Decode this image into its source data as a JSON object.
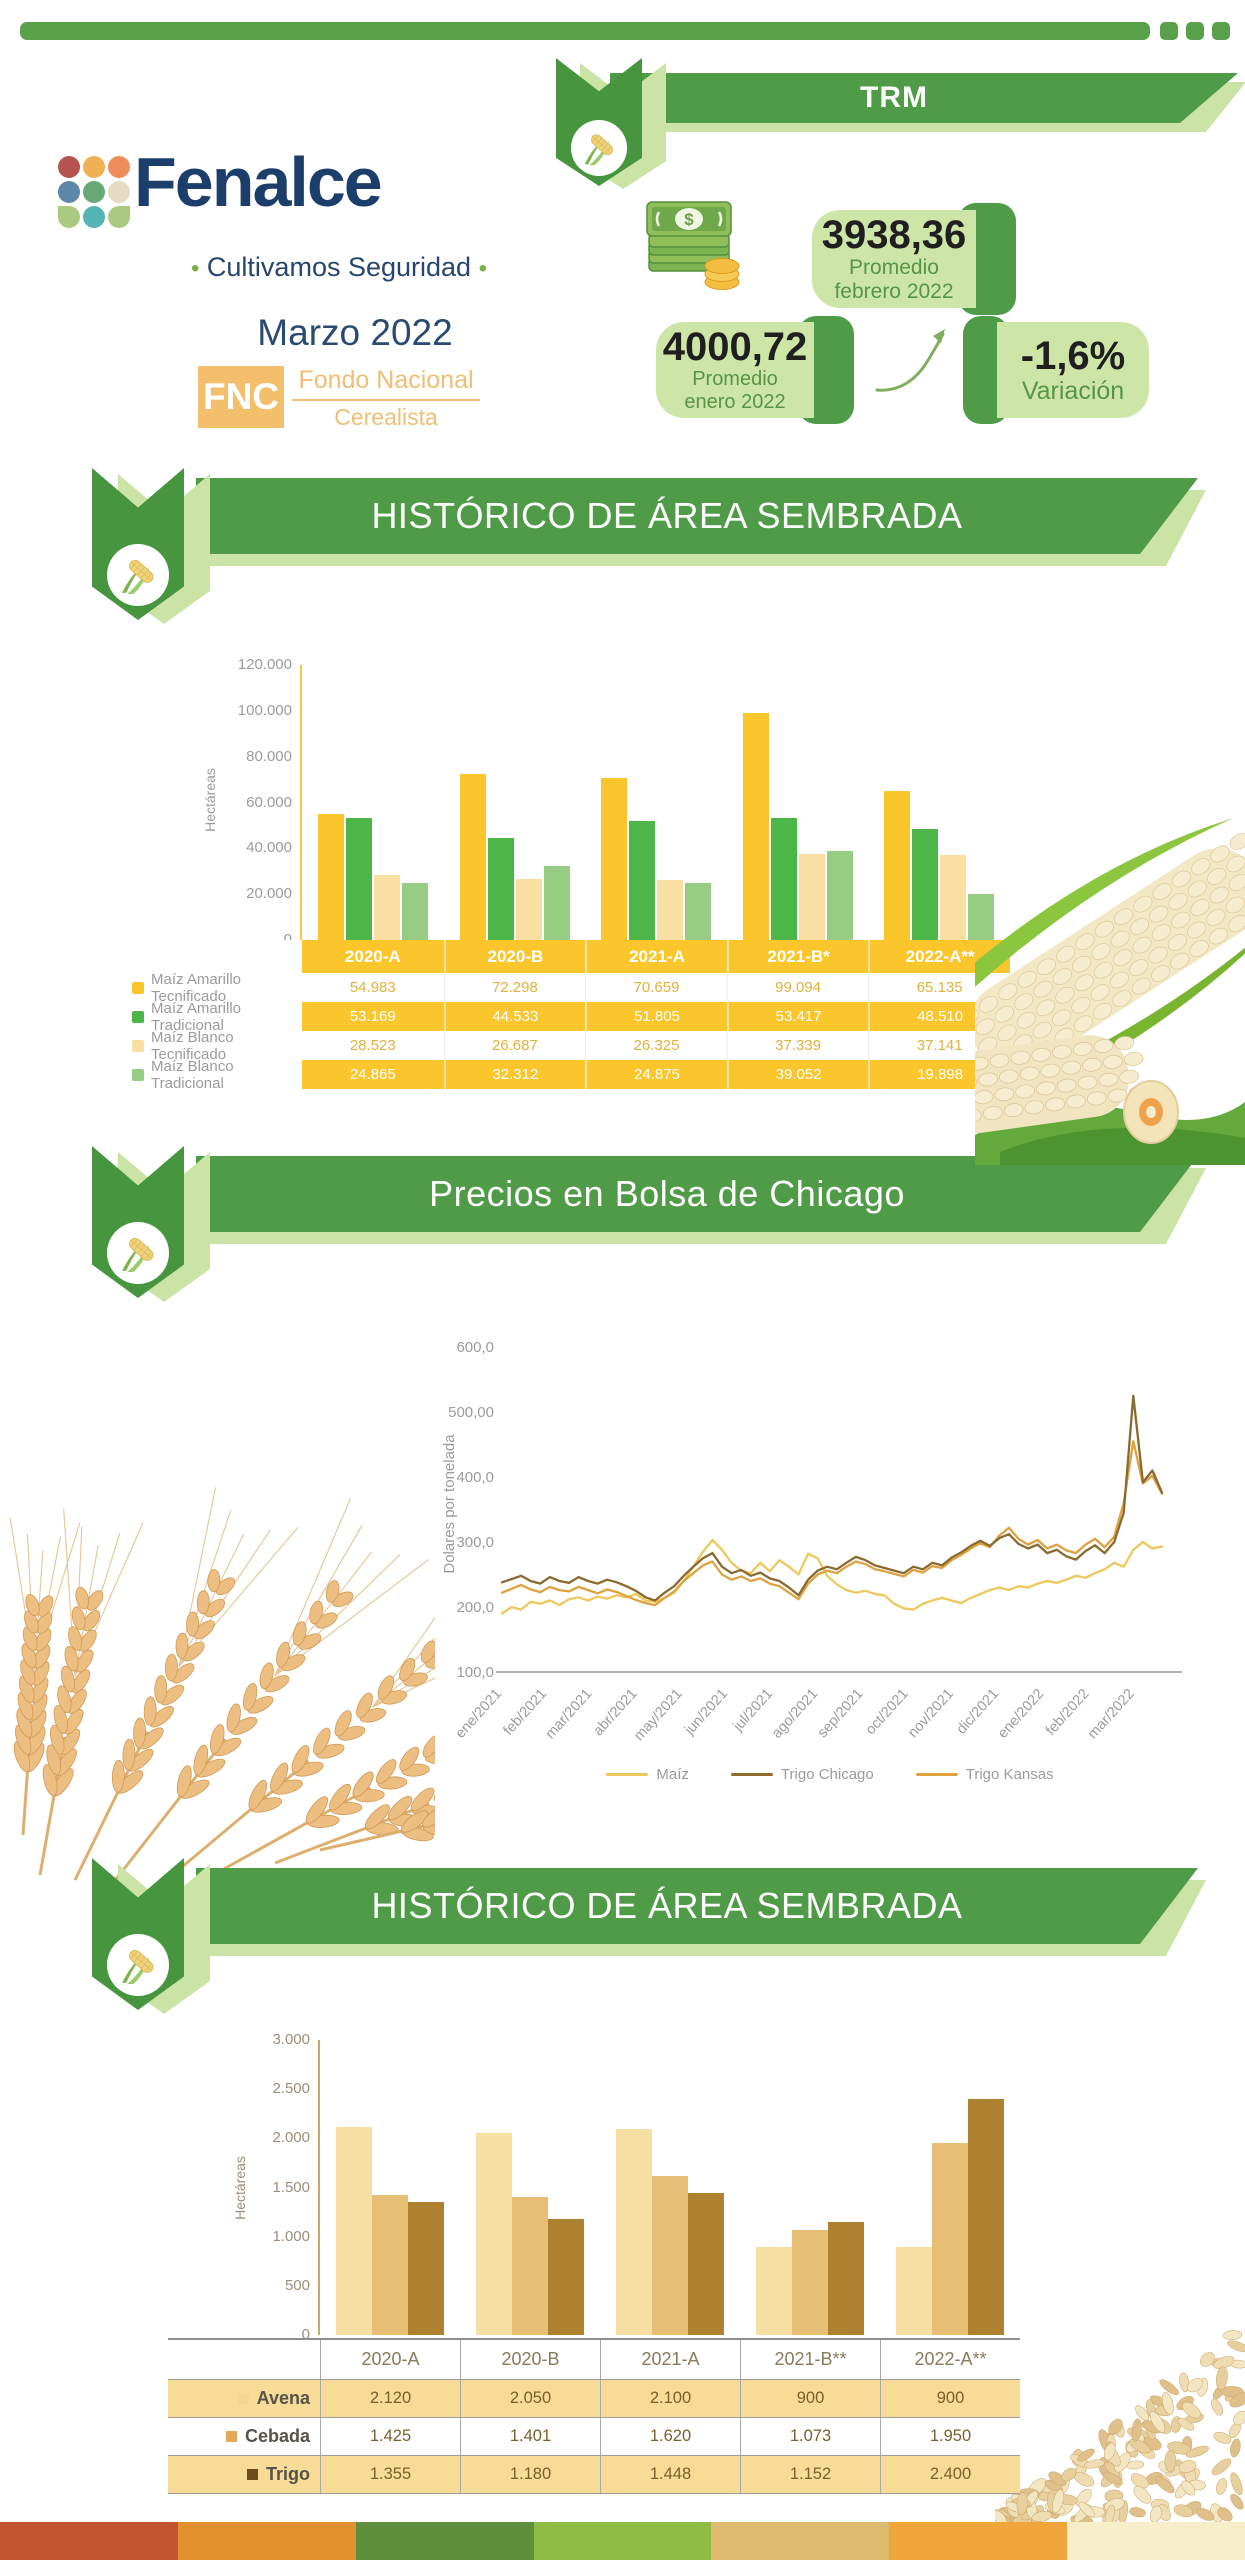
{
  "top_bar": {
    "color": "#59A04B",
    "squares_count": 3
  },
  "header": {
    "logo": {
      "brand": "Fenalce",
      "bullet": "•",
      "tagline": "Cultivamos Seguridad",
      "period": "Marzo 2022",
      "fnc": {
        "acronym": "FNC",
        "line1": "Fondo Nacional",
        "line2": "Cerealista"
      },
      "dots": [
        {
          "color": "#B5534E",
          "shape": "circle"
        },
        {
          "color": "#F0B054",
          "shape": "circle"
        },
        {
          "color": "#EE8C5A",
          "shape": "circle"
        },
        {
          "color": "#5E87A8",
          "shape": "circle"
        },
        {
          "color": "#67A876",
          "shape": "circle"
        },
        {
          "color": "#E5DAC3",
          "shape": "circle"
        },
        {
          "color": "#A9CA80",
          "shape": "leafL"
        },
        {
          "color": "#54B3B3",
          "shape": "circle"
        },
        {
          "color": "#A9CA80",
          "shape": "leafR"
        }
      ]
    },
    "trm": {
      "title": "TRM",
      "feb": {
        "value": "3938,36",
        "line1": "Promedio",
        "line2": "febrero 2022"
      },
      "ene": {
        "value": "4000,72",
        "line1": "Promedio",
        "line2": "enero 2022"
      },
      "variation": {
        "value": "-1,6%",
        "label": "Variación"
      }
    }
  },
  "sections": {
    "area1_title": "HISTÓRICO DE ÁREA SEMBRADA",
    "chicago_title": "Precios en Bolsa de Chicago",
    "area2_title": "HISTÓRICO DE ÁREA SEMBRADA"
  },
  "chart_data": [
    {
      "type": "bar",
      "title": "HISTÓRICO DE ÁREA SEMBRADA",
      "ylabel": "Hectáreas",
      "ylim": [
        0,
        120000
      ],
      "ytick_labels": [
        "120.000",
        "100.000",
        "80.000",
        "60.000",
        "40.000",
        "20.000",
        "0"
      ],
      "grid": false,
      "categories": [
        "2020-A",
        "2020-B",
        "2021-A",
        "2021-B*",
        "2022-A**"
      ],
      "series": [
        {
          "name": "Maíz Amarillo Tecnificado",
          "color": "#FBC62C",
          "values": [
            54983,
            72298,
            70659,
            99094,
            65135
          ]
        },
        {
          "name": "Maíz Amarillo Tradicional",
          "color": "#4DB648",
          "values": [
            53169,
            44533,
            51805,
            53417,
            48510
          ]
        },
        {
          "name": "Maíz Blanco Tecnificado",
          "color": "#FADFA3",
          "values": [
            28523,
            26687,
            26325,
            37339,
            37141
          ]
        },
        {
          "name": "Maíz Blanco Tradicional",
          "color": "#97CC83",
          "values": [
            24865,
            32312,
            24875,
            39052,
            19898
          ]
        }
      ]
    },
    {
      "type": "line",
      "title": "Precios en Bolsa de Chicago",
      "ylabel": "Dolares por tonelada",
      "ylim": [
        100,
        600
      ],
      "ytick_labels": [
        "600,0",
        "500,00",
        "400,0",
        "300,0",
        "200,0",
        "100,0"
      ],
      "grid": false,
      "legend_position": "bottom",
      "x_labels": [
        "ene/2021",
        "feb/2021",
        "mar/2021",
        "abr/2021",
        "may/2021",
        "jun/2021",
        "jul/2021",
        "ago/2021",
        "sep/2021",
        "oct/2021",
        "nov/2021",
        "dic/2021",
        "ene/2022",
        "feb/2022",
        "mar/2022"
      ],
      "series": [
        {
          "name": "Maíz",
          "color": "#EDC85C",
          "values": [
            190,
            200,
            196,
            208,
            205,
            210,
            203,
            212,
            215,
            210,
            216,
            213,
            218,
            215,
            220,
            210,
            208,
            214,
            222,
            240,
            262,
            285,
            303,
            288,
            268,
            256,
            252,
            268,
            255,
            272,
            262,
            250,
            282,
            275,
            248,
            235,
            226,
            222,
            225,
            220,
            218,
            205,
            198,
            196,
            205,
            210,
            214,
            210,
            206,
            214,
            220,
            226,
            230,
            226,
            232,
            230,
            236,
            240,
            237,
            242,
            248,
            245,
            252,
            258,
            268,
            262,
            288,
            300,
            290,
            293
          ]
        },
        {
          "name": "Trigo Chicago",
          "color": "#8A6A2F",
          "values": [
            238,
            243,
            248,
            240,
            236,
            246,
            240,
            237,
            246,
            240,
            236,
            242,
            238,
            232,
            225,
            215,
            210,
            222,
            232,
            248,
            262,
            275,
            283,
            262,
            252,
            257,
            248,
            253,
            244,
            240,
            230,
            218,
            242,
            256,
            262,
            258,
            268,
            277,
            272,
            264,
            260,
            256,
            252,
            262,
            258,
            268,
            264,
            276,
            284,
            294,
            302,
            294,
            306,
            312,
            297,
            290,
            296,
            283,
            288,
            278,
            273,
            286,
            295,
            283,
            300,
            345,
            525,
            392,
            410,
            376
          ]
        },
        {
          "name": "Trigo Kansas",
          "color": "#DFA23F",
          "values": [
            222,
            228,
            234,
            227,
            223,
            231,
            226,
            224,
            231,
            226,
            221,
            227,
            223,
            217,
            211,
            206,
            203,
            214,
            224,
            240,
            252,
            264,
            270,
            250,
            242,
            247,
            240,
            244,
            236,
            232,
            222,
            212,
            236,
            250,
            256,
            252,
            262,
            270,
            266,
            258,
            255,
            251,
            247,
            257,
            253,
            263,
            260,
            272,
            280,
            290,
            298,
            292,
            310,
            322,
            305,
            296,
            303,
            290,
            296,
            287,
            283,
            296,
            305,
            292,
            308,
            360,
            455,
            390,
            402,
            374
          ]
        }
      ]
    },
    {
      "type": "bar",
      "title": "HISTÓRICO DE ÁREA SEMBRADA",
      "ylabel": "Hectáreas",
      "ylim": [
        0,
        3000
      ],
      "ytick_labels": [
        "3.000",
        "2.500",
        "2.000",
        "1.500",
        "1.000",
        "500",
        "0"
      ],
      "grid": false,
      "categories": [
        "2020-A",
        "2020-B",
        "2021-A",
        "2021-B**",
        "2022-A**"
      ],
      "series": [
        {
          "name": "Avena",
          "color": "#F6DFA3",
          "swatch": "#F3D98F",
          "values": [
            2120,
            2050,
            2100,
            900,
            900
          ]
        },
        {
          "name": "Cebada",
          "color": "#E7BE74",
          "swatch": "#E0A95B",
          "values": [
            1425,
            1401,
            1620,
            1073,
            1950
          ]
        },
        {
          "name": "Trigo",
          "color": "#AF8030",
          "swatch": "#6E4B1B",
          "values": [
            1355,
            1180,
            1448,
            1152,
            2400
          ]
        }
      ]
    }
  ],
  "footer": {
    "strip_colors": [
      "#C3562F",
      "#E2912F",
      "#5F8F3D",
      "#8FBC44",
      "#DDBA6E",
      "#F1A63B",
      "#F6EFC9"
    ]
  }
}
